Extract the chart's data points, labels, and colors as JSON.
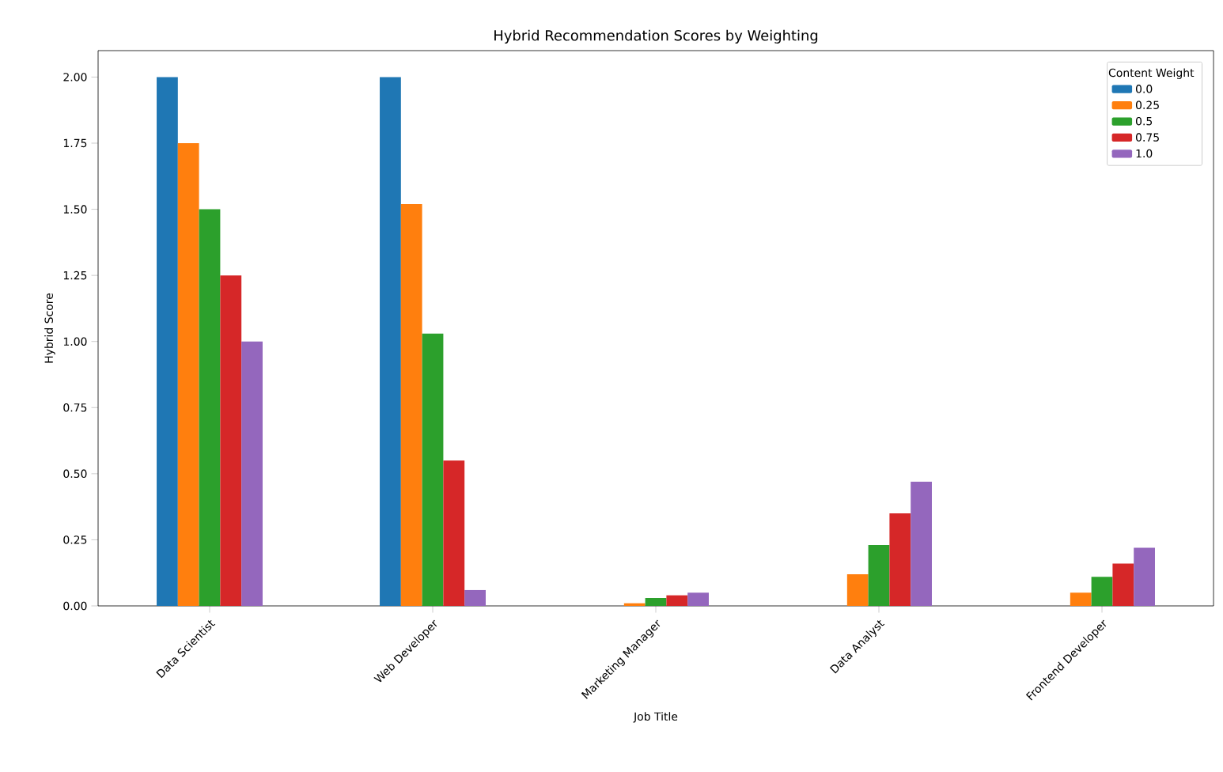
{
  "chart_data": {
    "type": "bar",
    "title": "Hybrid Recommendation Scores by Weighting",
    "xlabel": "Job Title",
    "ylabel": "Hybrid Score",
    "legend_title": "Content Weight",
    "legend": "top right",
    "categories": [
      "Data Scientist",
      "Web Developer",
      "Marketing Manager",
      "Data Analyst",
      "Frontend Developer"
    ],
    "series": [
      {
        "name": "0.0",
        "color": "#1f77b4",
        "values": [
          2.0,
          2.0,
          0.0,
          0.0,
          0.0
        ]
      },
      {
        "name": "0.25",
        "color": "#ff7f0e",
        "values": [
          1.75,
          1.52,
          0.01,
          0.12,
          0.05
        ]
      },
      {
        "name": "0.5",
        "color": "#2ca02c",
        "values": [
          1.5,
          1.03,
          0.03,
          0.23,
          0.11
        ]
      },
      {
        "name": "0.75",
        "color": "#d62728",
        "values": [
          1.25,
          0.55,
          0.04,
          0.35,
          0.16
        ]
      },
      {
        "name": "1.0",
        "color": "#9467bd",
        "values": [
          1.0,
          0.06,
          0.05,
          0.47,
          0.22
        ]
      }
    ],
    "ylim": [
      0,
      2.1
    ],
    "yticks": [
      {
        "value": 0,
        "label": "0.00"
      },
      {
        "value": 0.25,
        "label": "0.25"
      },
      {
        "value": 0.5,
        "label": "0.50"
      },
      {
        "value": 0.75,
        "label": "0.75"
      },
      {
        "value": 1.0,
        "label": "1.00"
      },
      {
        "value": 1.25,
        "label": "1.25"
      },
      {
        "value": 1.5,
        "label": "1.50"
      },
      {
        "value": 1.75,
        "label": "1.75"
      },
      {
        "value": 2.0,
        "label": "2.00"
      }
    ]
  }
}
